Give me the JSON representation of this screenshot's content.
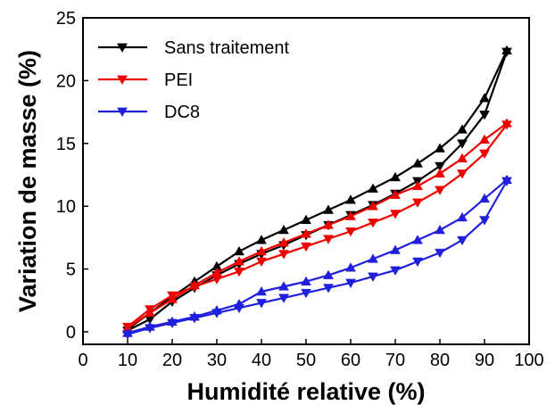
{
  "chart_data": {
    "type": "line",
    "title": "",
    "xlabel": "Humidité relative (%)",
    "ylabel": "Variation de masse (%)",
    "xlim": [
      0,
      100
    ],
    "ylim": [
      -1,
      25
    ],
    "xticks": [
      0,
      10,
      20,
      30,
      40,
      50,
      60,
      70,
      80,
      90,
      100
    ],
    "yticks": [
      0,
      5,
      10,
      15,
      20,
      25
    ],
    "grid": false,
    "legend": "top-left",
    "series": [
      {
        "name": "Sans traitement",
        "color": "#000000",
        "adsorption": {
          "marker": "triangle-down",
          "x": [
            10,
            15,
            20,
            25,
            30,
            35,
            40,
            45,
            50,
            55,
            60,
            65,
            70,
            75,
            80,
            85,
            90,
            95
          ],
          "y": [
            0.1,
            1.0,
            2.4,
            3.5,
            4.5,
            5.4,
            6.2,
            6.9,
            7.7,
            8.5,
            9.3,
            10.1,
            11.0,
            12.0,
            13.2,
            15.0,
            17.3,
            22.3
          ]
        },
        "desorption": {
          "marker": "triangle-up",
          "x": [
            95,
            90,
            85,
            80,
            75,
            70,
            65,
            60,
            55,
            50,
            45,
            40,
            35,
            30,
            25,
            20,
            15,
            10
          ],
          "y": [
            22.4,
            18.6,
            16.1,
            14.6,
            13.4,
            12.3,
            11.4,
            10.5,
            9.7,
            8.9,
            8.1,
            7.3,
            6.4,
            5.2,
            4.0,
            2.8,
            1.5,
            0.2
          ]
        }
      },
      {
        "name": "PEI",
        "color": "#ee0000",
        "adsorption": {
          "marker": "triangle-down",
          "x": [
            10,
            15,
            20,
            25,
            30,
            35,
            40,
            45,
            50,
            55,
            60,
            65,
            70,
            75,
            80,
            85,
            90,
            95
          ],
          "y": [
            0.4,
            1.8,
            2.9,
            3.6,
            4.2,
            4.8,
            5.6,
            6.2,
            6.8,
            7.4,
            8.0,
            8.7,
            9.4,
            10.3,
            11.3,
            12.6,
            14.2,
            16.5
          ]
        },
        "desorption": {
          "marker": "triangle-up",
          "x": [
            95,
            90,
            85,
            80,
            75,
            70,
            65,
            60,
            55,
            50,
            45,
            40,
            35,
            30,
            25,
            20,
            15,
            10
          ],
          "y": [
            16.6,
            15.3,
            13.8,
            12.6,
            11.6,
            10.9,
            10.0,
            9.2,
            8.5,
            7.8,
            7.1,
            6.4,
            5.6,
            4.7,
            3.7,
            2.6,
            1.5,
            0.3
          ]
        }
      },
      {
        "name": "DC8",
        "color": "#1f1fdd",
        "adsorption": {
          "marker": "triangle-down",
          "x": [
            10,
            15,
            20,
            25,
            30,
            35,
            40,
            45,
            50,
            55,
            60,
            65,
            70,
            75,
            80,
            85,
            90,
            95
          ],
          "y": [
            -0.2,
            0.3,
            0.7,
            1.1,
            1.5,
            1.9,
            2.3,
            2.7,
            3.1,
            3.5,
            3.9,
            4.4,
            4.9,
            5.6,
            6.3,
            7.3,
            8.9,
            12.0
          ]
        },
        "desorption": {
          "marker": "triangle-up",
          "x": [
            95,
            90,
            85,
            80,
            75,
            70,
            65,
            60,
            55,
            50,
            45,
            40,
            35,
            30,
            25,
            20,
            15,
            10
          ],
          "y": [
            12.1,
            10.6,
            9.1,
            8.1,
            7.3,
            6.5,
            5.8,
            5.1,
            4.5,
            4.0,
            3.6,
            3.2,
            2.2,
            1.7,
            1.2,
            0.8,
            0.4,
            -0.1
          ]
        }
      }
    ]
  }
}
